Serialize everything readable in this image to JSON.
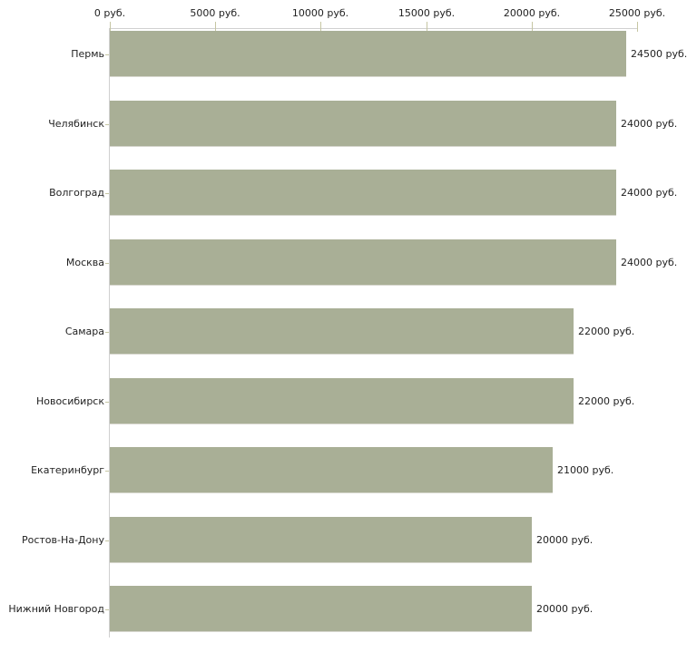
{
  "chart_data": {
    "type": "bar",
    "orientation": "horizontal",
    "categories": [
      "Пермь",
      "Челябинск",
      "Волгоград",
      "Москва",
      "Самара",
      "Новосибирск",
      "Екатеринбург",
      "Ростов-На-Дону",
      "Нижний Новгород"
    ],
    "values": [
      24500,
      24000,
      24000,
      24000,
      22000,
      22000,
      21000,
      20000,
      20000
    ],
    "value_labels": [
      "24500 руб.",
      "24000 руб.",
      "24000 руб.",
      "24000 руб.",
      "22000 руб.",
      "22000 руб.",
      "21000 руб.",
      "20000 руб.",
      "20000 руб."
    ],
    "x_ticks": [
      {
        "value": 0,
        "label": "0 руб."
      },
      {
        "value": 5000,
        "label": "5000 руб."
      },
      {
        "value": 10000,
        "label": "10000 руб."
      },
      {
        "value": 15000,
        "label": "15000 руб."
      },
      {
        "value": 20000,
        "label": "20000 руб."
      },
      {
        "value": 25000,
        "label": "25000 руб."
      }
    ],
    "xlim": [
      0,
      25000
    ],
    "unit": "руб.",
    "grid": false,
    "legend_position": "none",
    "colors": {
      "bar": "#a9af96",
      "axis_line": "#d0d0d0",
      "tick_mark": "#c6c6a3",
      "text": "#222222",
      "background": "#ffffff"
    }
  }
}
